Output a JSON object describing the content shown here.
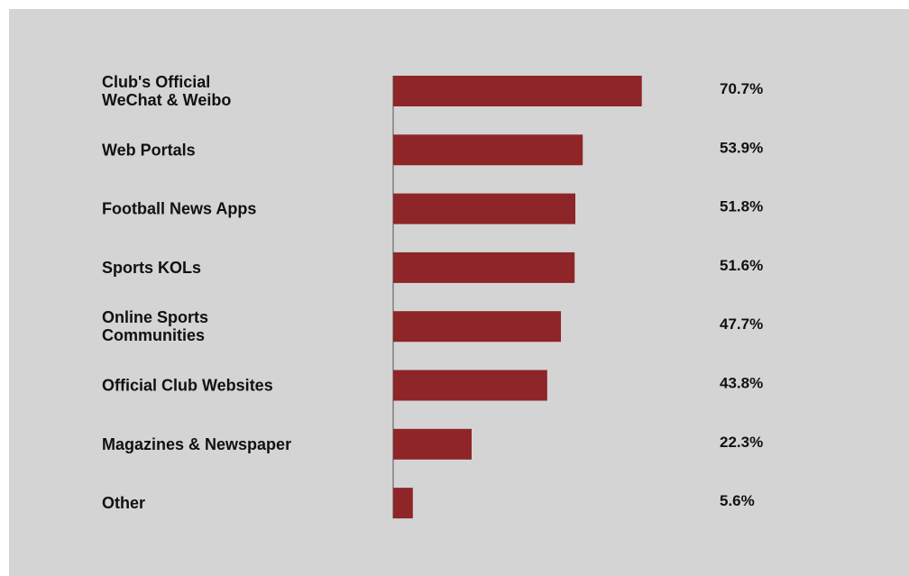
{
  "colors": {
    "background": "#d4d4d4",
    "bar": "#8e2528",
    "axis": "#555555",
    "text": "#111111"
  },
  "chart_data": {
    "type": "bar",
    "orientation": "horizontal",
    "categories": [
      [
        "Club's Official",
        "WeChat & Weibo"
      ],
      [
        "Web Portals"
      ],
      [
        "Football News Apps"
      ],
      [
        "Sports KOLs"
      ],
      [
        "Online Sports",
        "Communities"
      ],
      [
        "Official Club Websites"
      ],
      [
        "Magazines & Newspaper"
      ],
      [
        "Other"
      ]
    ],
    "values": [
      70.7,
      53.9,
      51.8,
      51.6,
      47.7,
      43.8,
      22.3,
      5.6
    ],
    "value_labels": [
      "70.7%",
      "53.9%",
      "51.8%",
      "51.6%",
      "47.7%",
      "43.8%",
      "22.3%",
      "5.6%"
    ],
    "title": "",
    "xlabel": "",
    "ylabel": "",
    "xlim": [
      0,
      100
    ],
    "grid": false,
    "legend": "none"
  }
}
